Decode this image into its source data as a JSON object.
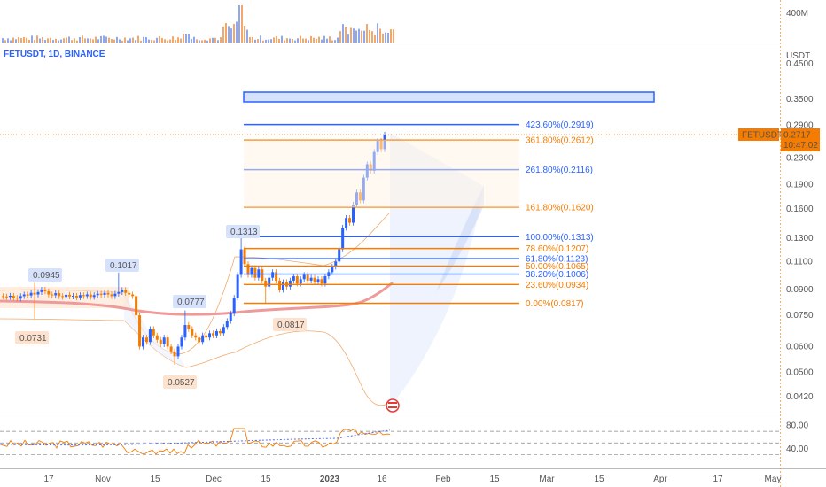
{
  "header": {
    "symbol": "FETUSDT, 1D, BINANCE",
    "currency": "USDT"
  },
  "price_axis": {
    "ticks": [
      "0.4500",
      "0.3500",
      "0.2900",
      "0.2300",
      "0.1900",
      "0.1600",
      "0.1300",
      "0.1100",
      "0.0900",
      "0.0750",
      "0.0600",
      "0.0500",
      "0.0420"
    ]
  },
  "current": {
    "symbol": "FETUSDT",
    "price": "0.2717",
    "countdown": "10:47:02"
  },
  "volume_axis": {
    "label": "400M"
  },
  "rsi_axis": {
    "ticks": [
      "80.00",
      "40.00"
    ]
  },
  "time_axis": {
    "labels": [
      "17",
      "Nov",
      "15",
      "Dec",
      "15",
      "2023",
      "16",
      "Feb",
      "15",
      "Mar",
      "15",
      "Apr",
      "17",
      "May"
    ]
  },
  "pivots": [
    {
      "label": "0.0945"
    },
    {
      "label": "0.1017"
    },
    {
      "label": "0.0777"
    },
    {
      "label": "0.1313"
    },
    {
      "label": "0.0731"
    },
    {
      "label": "0.0527"
    },
    {
      "label": "0.0817"
    }
  ],
  "fib_levels": [
    {
      "label": "423.60%(0.2919)",
      "color": "#2962ff"
    },
    {
      "label": "361.80%(0.2612)",
      "color": "#f57c00"
    },
    {
      "label": "261.80%(0.2116)",
      "color": "#2962ff"
    },
    {
      "label": "161.80%(0.1620)",
      "color": "#f57c00"
    },
    {
      "label": "100.00%(0.1313)",
      "color": "#2962ff"
    },
    {
      "label": "78.60%(0.1207)",
      "color": "#f57c00"
    },
    {
      "label": "61.80%(0.1123)",
      "color": "#2962ff"
    },
    {
      "label": "50.00%(0.1065)",
      "color": "#f57c00"
    },
    {
      "label": "38.20%(0.1006)",
      "color": "#2962ff"
    },
    {
      "label": "23.60%(0.0934)",
      "color": "#f57c00"
    },
    {
      "label": "0.00%(0.0817)",
      "color": "#f57c00"
    }
  ],
  "colors": {
    "up": "#2962ff",
    "down": "#f57c00",
    "ma": "#ef9a9a",
    "rsi": "#f57c00",
    "rsi_ma": "#5b6ee1"
  },
  "chart_data": {
    "type": "candlestick",
    "symbol": "FETUSDT",
    "interval": "1D",
    "exchange": "BINANCE",
    "price_scale": "log",
    "ylim": [
      0.04,
      0.48
    ],
    "rsi_levels": [
      70,
      50,
      30
    ],
    "key_prices": {
      "high": 0.2919,
      "last": 0.2717,
      "swing_low": 0.0527,
      "swing_high_dec": 0.1313
    }
  }
}
